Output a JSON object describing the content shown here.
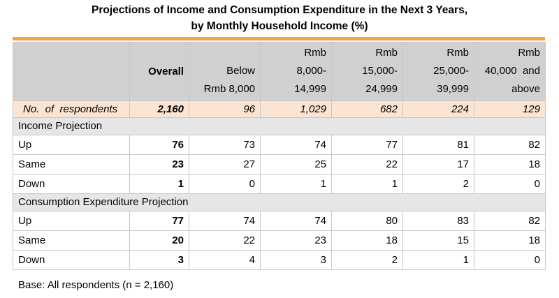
{
  "title_line1": "Projections of Income and Consumption Expenditure in the Next 3 Years,",
  "title_line2": "by Monthly Household Income (%)",
  "chart_data": {
    "type": "table",
    "columns": [
      {
        "line1": "",
        "line2": "Overall",
        "line3": ""
      },
      {
        "line1": "",
        "line2": "Below",
        "line3": "Rmb 8,000"
      },
      {
        "line1": "Rmb",
        "line2": "8,000-",
        "line3": "14,999"
      },
      {
        "line1": "Rmb",
        "line2": "15,000-",
        "line3": "24,999"
      },
      {
        "line1": "Rmb",
        "line2": "25,000-",
        "line3": "39,999"
      },
      {
        "line1": "Rmb",
        "line2": "40,000  and",
        "line3": "above"
      }
    ],
    "respondents": {
      "label": "No.  of  respondents",
      "values": [
        "2,160",
        "96",
        "1,029",
        "682",
        "224",
        "129"
      ]
    },
    "sections": [
      {
        "title": "Income Projection",
        "rows": [
          {
            "label": "Up",
            "values": [
              76,
              73,
              74,
              77,
              81,
              82
            ]
          },
          {
            "label": "Same",
            "values": [
              23,
              27,
              25,
              22,
              17,
              18
            ]
          },
          {
            "label": "Down",
            "values": [
              1,
              0,
              1,
              1,
              2,
              0
            ]
          }
        ]
      },
      {
        "title": "Consumption Expenditure Projection",
        "rows": [
          {
            "label": "Up",
            "values": [
              77,
              74,
              74,
              80,
              83,
              82
            ]
          },
          {
            "label": "Same",
            "values": [
              20,
              22,
              23,
              18,
              15,
              18
            ]
          },
          {
            "label": "Down",
            "values": [
              3,
              4,
              3,
              2,
              1,
              0
            ]
          }
        ]
      }
    ]
  },
  "footnote": "Base: All respondents (n = 2,160)",
  "colors": {
    "header_bg": "#d0d0d0",
    "respondents_bg": "#fce4d2",
    "section_bg": "#e6e6e6",
    "accent_rule": "#f4a146"
  }
}
